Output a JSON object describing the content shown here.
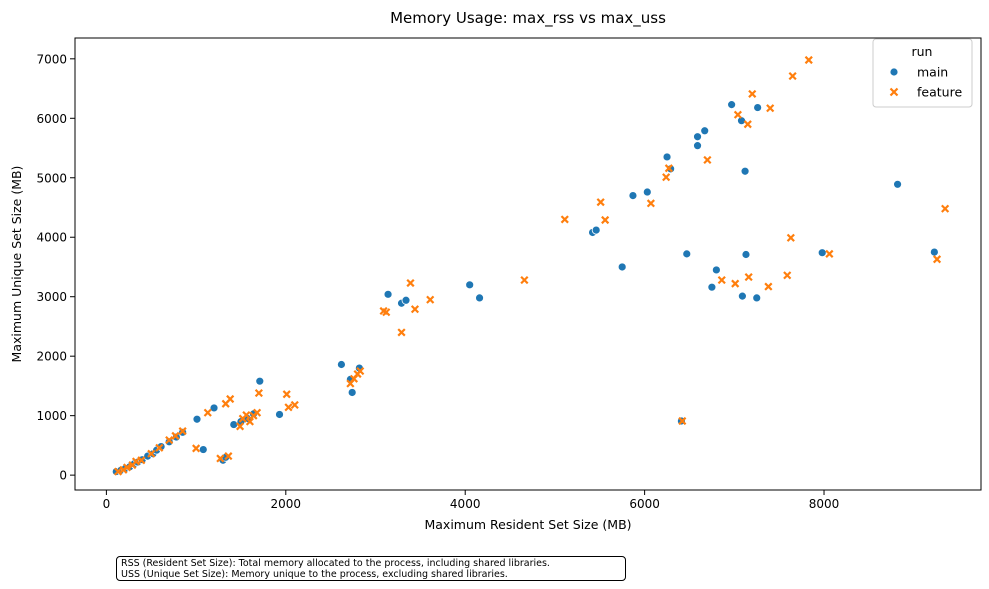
{
  "chart_data": {
    "type": "scatter",
    "title": "Memory Usage: max_rss vs max_uss",
    "xlabel": "Maximum Resident Set Size (MB)",
    "ylabel": "Maximum Unique Set Size (MB)",
    "xlim": [
      -350,
      9750
    ],
    "ylim": [
      -250,
      7350
    ],
    "xticks": [
      0,
      2000,
      4000,
      6000,
      8000
    ],
    "yticks": [
      0,
      1000,
      2000,
      3000,
      4000,
      5000,
      6000,
      7000
    ],
    "legend": {
      "title": "run",
      "position": "top-right"
    },
    "colors": {
      "main": "#1f77b4",
      "feature": "#ff7f0e"
    },
    "series": [
      {
        "name": "main",
        "marker": "circle",
        "points": [
          [
            110,
            60
          ],
          [
            160,
            80
          ],
          [
            210,
            110
          ],
          [
            260,
            140
          ],
          [
            310,
            190
          ],
          [
            350,
            220
          ],
          [
            400,
            260
          ],
          [
            460,
            320
          ],
          [
            520,
            360
          ],
          [
            560,
            420
          ],
          [
            610,
            480
          ],
          [
            700,
            560
          ],
          [
            780,
            640
          ],
          [
            850,
            720
          ],
          [
            1010,
            940
          ],
          [
            1080,
            430
          ],
          [
            1200,
            1130
          ],
          [
            1300,
            250
          ],
          [
            1330,
            300
          ],
          [
            1420,
            850
          ],
          [
            1500,
            900
          ],
          [
            1580,
            950
          ],
          [
            1640,
            1030
          ],
          [
            1710,
            1580
          ],
          [
            1930,
            1020
          ],
          [
            2620,
            1860
          ],
          [
            2720,
            1610
          ],
          [
            2740,
            1390
          ],
          [
            2820,
            1800
          ],
          [
            3140,
            3040
          ],
          [
            3290,
            2890
          ],
          [
            3340,
            2940
          ],
          [
            4050,
            3200
          ],
          [
            4160,
            2980
          ],
          [
            5420,
            4080
          ],
          [
            5460,
            4120
          ],
          [
            5750,
            3500
          ],
          [
            5870,
            4700
          ],
          [
            6030,
            4760
          ],
          [
            6250,
            5350
          ],
          [
            6290,
            5150
          ],
          [
            6410,
            910
          ],
          [
            6470,
            3720
          ],
          [
            6590,
            5540
          ],
          [
            6590,
            5690
          ],
          [
            6670,
            5790
          ],
          [
            6750,
            3160
          ],
          [
            6800,
            3450
          ],
          [
            6970,
            6230
          ],
          [
            7080,
            5960
          ],
          [
            7090,
            3010
          ],
          [
            7120,
            5110
          ],
          [
            7130,
            3710
          ],
          [
            7250,
            2980
          ],
          [
            7260,
            6180
          ],
          [
            7980,
            3740
          ],
          [
            8820,
            4890
          ],
          [
            9230,
            3750
          ]
        ]
      },
      {
        "name": "feature",
        "marker": "x",
        "points": [
          [
            130,
            60
          ],
          [
            190,
            90
          ],
          [
            230,
            130
          ],
          [
            290,
            170
          ],
          [
            330,
            230
          ],
          [
            390,
            250
          ],
          [
            500,
            360
          ],
          [
            590,
            460
          ],
          [
            700,
            590
          ],
          [
            770,
            660
          ],
          [
            850,
            740
          ],
          [
            1000,
            450
          ],
          [
            1130,
            1050
          ],
          [
            1270,
            280
          ],
          [
            1330,
            1200
          ],
          [
            1360,
            320
          ],
          [
            1380,
            1280
          ],
          [
            1490,
            820
          ],
          [
            1520,
            950
          ],
          [
            1560,
            1010
          ],
          [
            1600,
            900
          ],
          [
            1640,
            1000
          ],
          [
            1680,
            1050
          ],
          [
            1700,
            1380
          ],
          [
            2010,
            1360
          ],
          [
            2030,
            1140
          ],
          [
            2100,
            1180
          ],
          [
            2720,
            1540
          ],
          [
            2760,
            1620
          ],
          [
            2800,
            1700
          ],
          [
            2830,
            1750
          ],
          [
            3090,
            2760
          ],
          [
            3120,
            2740
          ],
          [
            3290,
            2400
          ],
          [
            3390,
            3230
          ],
          [
            3440,
            2790
          ],
          [
            3610,
            2950
          ],
          [
            4660,
            3280
          ],
          [
            5110,
            4300
          ],
          [
            5510,
            4590
          ],
          [
            5560,
            4290
          ],
          [
            6070,
            4570
          ],
          [
            6240,
            5010
          ],
          [
            6270,
            5160
          ],
          [
            6420,
            910
          ],
          [
            6700,
            5300
          ],
          [
            6860,
            3280
          ],
          [
            7010,
            3220
          ],
          [
            7040,
            6060
          ],
          [
            7150,
            5900
          ],
          [
            7160,
            3330
          ],
          [
            7200,
            6410
          ],
          [
            7380,
            3170
          ],
          [
            7400,
            6170
          ],
          [
            7590,
            3360
          ],
          [
            7630,
            3990
          ],
          [
            7650,
            6710
          ],
          [
            7830,
            6980
          ],
          [
            8060,
            3720
          ],
          [
            9260,
            3630
          ],
          [
            9350,
            4480
          ]
        ]
      }
    ]
  },
  "notes": {
    "rss": "RSS (Resident Set Size): Total memory allocated to the process, including shared libraries.",
    "uss": "USS (Unique Set Size): Memory unique to the process, excluding shared libraries."
  }
}
